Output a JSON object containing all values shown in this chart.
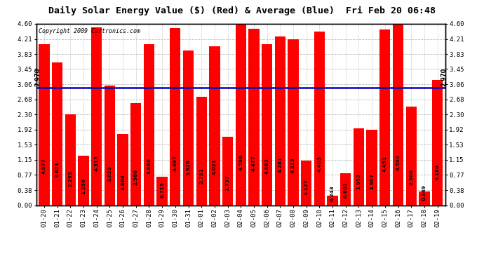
{
  "title": "Daily Solar Energy Value ($) (Red) & Average (Blue)  Fri Feb 20 06:48",
  "copyright": "Copyright 2009 Cartronics.com",
  "average": 2.97,
  "bar_color": "#FF0000",
  "average_line_color": "#0000BB",
  "background_color": "#FFFFFF",
  "plot_bg_color": "#FFFFFF",
  "ylim": [
    0.0,
    4.6
  ],
  "yticks": [
    0.0,
    0.38,
    0.77,
    1.15,
    1.53,
    1.92,
    2.3,
    2.68,
    3.06,
    3.45,
    3.83,
    4.21,
    4.6
  ],
  "grid_color": "#BBBBBB",
  "categories": [
    "01-20",
    "01-21",
    "01-22",
    "01-23",
    "01-24",
    "01-25",
    "01-26",
    "01-27",
    "01-28",
    "01-29",
    "01-30",
    "01-31",
    "02-01",
    "02-02",
    "02-03",
    "02-04",
    "02-05",
    "02-06",
    "02-07",
    "02-08",
    "02-09",
    "02-10",
    "02-11",
    "02-12",
    "02-13",
    "02-14",
    "02-15",
    "02-16",
    "02-17",
    "02-18",
    "02-19"
  ],
  "values": [
    4.077,
    3.621,
    2.295,
    1.256,
    4.513,
    3.029,
    1.804,
    2.586,
    4.086,
    0.715,
    4.497,
    3.926,
    2.751,
    4.021,
    1.737,
    4.596,
    4.477,
    4.083,
    4.281,
    4.213,
    1.127,
    4.403,
    0.243,
    0.801,
    1.953,
    1.907,
    4.451,
    4.592,
    2.506,
    0.349,
    3.18
  ],
  "label_fontsize": 5.2,
  "tick_fontsize": 6.5,
  "title_fontsize": 9.5,
  "copyright_fontsize": 6.0
}
